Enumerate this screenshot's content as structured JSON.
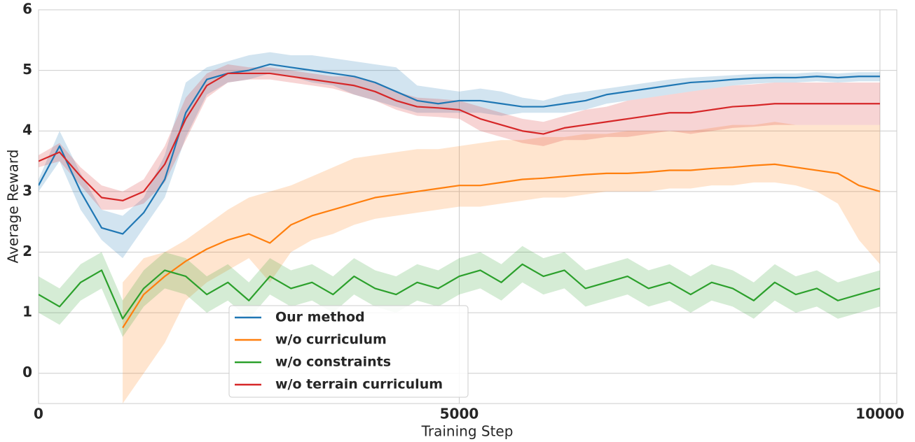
{
  "chart_data": {
    "type": "line",
    "xlabel": "Training Step",
    "ylabel": "Average Reward",
    "x": [
      0,
      250,
      500,
      750,
      1000,
      1250,
      1500,
      1750,
      2000,
      2250,
      2500,
      2750,
      3000,
      3250,
      3500,
      3750,
      4000,
      4250,
      4500,
      4750,
      5000,
      5250,
      5500,
      5750,
      6000,
      6250,
      6500,
      6750,
      7000,
      7250,
      7500,
      7750,
      8000,
      8250,
      8500,
      8750,
      9000,
      9250,
      9500,
      9750,
      10000
    ],
    "xlim": [
      0,
      10200
    ],
    "xticks": [
      0,
      5000,
      10000
    ],
    "ylim": [
      -0.5,
      6
    ],
    "yticks": [
      0,
      1,
      2,
      3,
      4,
      5,
      6
    ],
    "grid": true,
    "legend_position": "lower center",
    "series": [
      {
        "name": "Our method",
        "color": "#1f77b4",
        "values": [
          3.1,
          3.75,
          3.0,
          2.4,
          2.3,
          2.65,
          3.2,
          4.3,
          4.85,
          4.95,
          5.0,
          5.1,
          5.05,
          5.0,
          4.95,
          4.9,
          4.8,
          4.65,
          4.5,
          4.45,
          4.5,
          4.5,
          4.45,
          4.4,
          4.4,
          4.45,
          4.5,
          4.6,
          4.65,
          4.7,
          4.75,
          4.8,
          4.82,
          4.85,
          4.87,
          4.88,
          4.88,
          4.9,
          4.88,
          4.9,
          4.9
        ],
        "lower": [
          3.0,
          3.5,
          2.7,
          2.2,
          1.9,
          2.4,
          2.9,
          3.9,
          4.6,
          4.8,
          4.85,
          4.95,
          4.9,
          4.8,
          4.75,
          4.6,
          4.5,
          4.4,
          4.3,
          4.3,
          4.3,
          4.3,
          4.25,
          4.3,
          4.3,
          4.3,
          4.35,
          4.45,
          4.5,
          4.55,
          4.6,
          4.65,
          4.7,
          4.75,
          4.78,
          4.8,
          4.8,
          4.82,
          4.8,
          4.82,
          4.82
        ],
        "upper": [
          3.2,
          4.0,
          3.3,
          2.7,
          2.6,
          2.9,
          3.6,
          4.8,
          5.05,
          5.15,
          5.25,
          5.3,
          5.25,
          5.25,
          5.2,
          5.15,
          5.1,
          5.05,
          4.75,
          4.7,
          4.65,
          4.7,
          4.65,
          4.55,
          4.5,
          4.6,
          4.65,
          4.7,
          4.75,
          4.8,
          4.85,
          4.88,
          4.9,
          4.92,
          4.94,
          4.95,
          4.95,
          4.97,
          4.95,
          4.97,
          4.97
        ]
      },
      {
        "name": "w/o curriculum",
        "color": "#ff7f0e",
        "values": [
          null,
          null,
          null,
          null,
          0.75,
          1.3,
          1.6,
          1.85,
          2.05,
          2.2,
          2.3,
          2.15,
          2.45,
          2.6,
          2.7,
          2.8,
          2.9,
          2.95,
          3.0,
          3.05,
          3.1,
          3.1,
          3.15,
          3.2,
          3.22,
          3.25,
          3.28,
          3.3,
          3.3,
          3.32,
          3.35,
          3.35,
          3.38,
          3.4,
          3.43,
          3.45,
          3.4,
          3.35,
          3.3,
          3.1,
          3.0
        ],
        "lower": [
          null,
          null,
          null,
          null,
          -0.5,
          0.0,
          0.5,
          1.2,
          1.5,
          1.7,
          1.9,
          1.5,
          2.0,
          2.2,
          2.3,
          2.45,
          2.55,
          2.6,
          2.65,
          2.7,
          2.75,
          2.75,
          2.8,
          2.85,
          2.9,
          2.9,
          2.95,
          3.0,
          3.0,
          3.0,
          3.05,
          3.05,
          3.1,
          3.1,
          3.15,
          3.15,
          3.1,
          3.0,
          2.8,
          2.2,
          1.8
        ],
        "upper": [
          null,
          null,
          null,
          null,
          1.5,
          1.9,
          2.0,
          2.2,
          2.45,
          2.7,
          2.9,
          3.0,
          3.1,
          3.25,
          3.4,
          3.55,
          3.6,
          3.65,
          3.7,
          3.7,
          3.75,
          3.8,
          3.85,
          3.85,
          3.9,
          3.9,
          3.95,
          3.95,
          4.0,
          4.0,
          4.0,
          4.0,
          4.05,
          4.1,
          4.1,
          4.15,
          4.1,
          4.1,
          4.1,
          4.1,
          4.1
        ]
      },
      {
        "name": "w/o constraints",
        "color": "#2ca02c",
        "values": [
          1.3,
          1.1,
          1.5,
          1.7,
          0.9,
          1.4,
          1.7,
          1.6,
          1.3,
          1.5,
          1.2,
          1.6,
          1.4,
          1.5,
          1.3,
          1.6,
          1.4,
          1.3,
          1.5,
          1.4,
          1.6,
          1.7,
          1.5,
          1.8,
          1.6,
          1.7,
          1.4,
          1.5,
          1.6,
          1.4,
          1.5,
          1.3,
          1.5,
          1.4,
          1.2,
          1.5,
          1.3,
          1.4,
          1.2,
          1.3,
          1.4
        ],
        "lower": [
          1.0,
          0.8,
          1.2,
          1.4,
          0.6,
          1.1,
          1.4,
          1.3,
          1.0,
          1.2,
          0.9,
          1.3,
          1.1,
          1.2,
          1.0,
          1.3,
          1.1,
          1.0,
          1.2,
          1.1,
          1.3,
          1.4,
          1.2,
          1.5,
          1.3,
          1.4,
          1.1,
          1.2,
          1.3,
          1.1,
          1.2,
          1.0,
          1.2,
          1.1,
          0.9,
          1.2,
          1.0,
          1.1,
          0.9,
          1.0,
          1.1
        ],
        "upper": [
          1.6,
          1.4,
          1.8,
          2.0,
          1.2,
          1.7,
          2.0,
          1.9,
          1.6,
          1.8,
          1.5,
          1.9,
          1.7,
          1.8,
          1.6,
          1.9,
          1.7,
          1.6,
          1.8,
          1.7,
          1.9,
          2.0,
          1.8,
          2.1,
          1.9,
          2.0,
          1.7,
          1.8,
          1.9,
          1.7,
          1.8,
          1.6,
          1.8,
          1.7,
          1.5,
          1.8,
          1.6,
          1.7,
          1.5,
          1.6,
          1.7
        ]
      },
      {
        "name": "w/o terrain curriculum",
        "color": "#d62728",
        "values": [
          3.5,
          3.65,
          3.25,
          2.9,
          2.85,
          3.0,
          3.45,
          4.2,
          4.75,
          4.95,
          4.95,
          4.95,
          4.9,
          4.85,
          4.8,
          4.75,
          4.65,
          4.5,
          4.4,
          4.38,
          4.35,
          4.2,
          4.1,
          4.0,
          3.95,
          4.05,
          4.1,
          4.15,
          4.2,
          4.25,
          4.3,
          4.3,
          4.35,
          4.4,
          4.42,
          4.45,
          4.45,
          4.45,
          4.45,
          4.45,
          4.45
        ],
        "lower": [
          3.4,
          3.5,
          3.1,
          2.7,
          2.7,
          2.8,
          3.15,
          3.85,
          4.55,
          4.8,
          4.85,
          4.85,
          4.8,
          4.75,
          4.7,
          4.6,
          4.5,
          4.35,
          4.25,
          4.23,
          4.2,
          4.0,
          3.9,
          3.8,
          3.75,
          3.85,
          3.85,
          3.9,
          3.9,
          3.95,
          4.0,
          3.95,
          4.0,
          4.05,
          4.07,
          4.1,
          4.1,
          4.1,
          4.1,
          4.1,
          4.1
        ],
        "upper": [
          3.6,
          3.8,
          3.4,
          3.1,
          3.0,
          3.2,
          3.75,
          4.55,
          4.95,
          5.1,
          5.05,
          5.05,
          5.0,
          4.95,
          4.9,
          4.9,
          4.8,
          4.65,
          4.55,
          4.53,
          4.5,
          4.4,
          4.3,
          4.2,
          4.15,
          4.25,
          4.35,
          4.4,
          4.5,
          4.55,
          4.6,
          4.65,
          4.7,
          4.75,
          4.77,
          4.8,
          4.8,
          4.8,
          4.8,
          4.8,
          4.8
        ]
      }
    ]
  }
}
